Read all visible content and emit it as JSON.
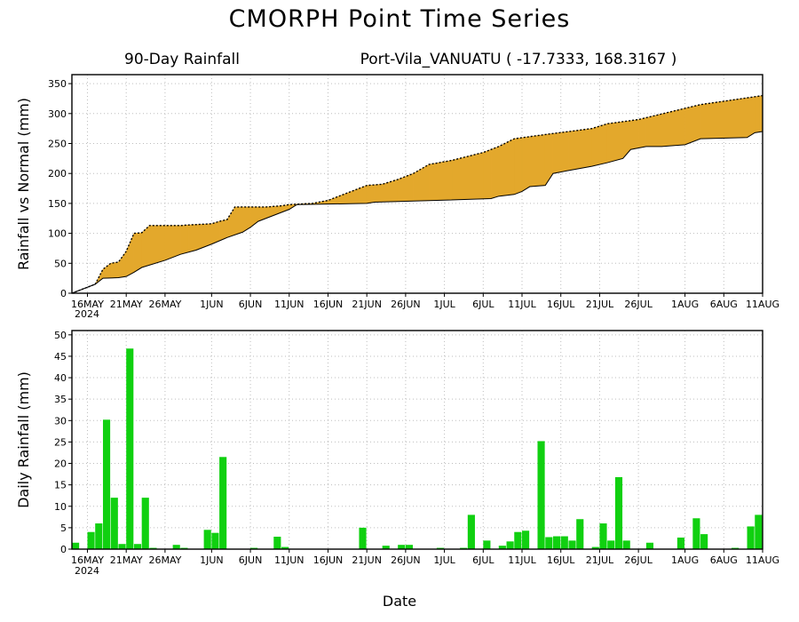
{
  "title": "CMORPH Point Time Series",
  "subtitle_left": "90-Day Rainfall",
  "subtitle_right": "Port-Vila_VANUATU ( -17.7333, 168.3167 )",
  "colors": {
    "deficit": "#1f3cff",
    "surplus": "#e3a82c",
    "daily_bar": "#10d010",
    "grid": "#bdbdbd"
  },
  "x_axis": {
    "xlabel": "Date",
    "tick_labels": [
      "16MAY",
      "21MAY",
      "26MAY",
      "1JUN",
      "6JUN",
      "11JUN",
      "16JUN",
      "21JUN",
      "26JUN",
      "1JUL",
      "6JUL",
      "11JUL",
      "16JUL",
      "21JUL",
      "26JUL",
      "1AUG",
      "6AUG",
      "11AUG"
    ],
    "year_label": "2024"
  },
  "chart_data": [
    {
      "type": "area",
      "ylabel": "Rainfall vs Normal (mm)",
      "ylim": [
        0,
        365
      ],
      "yticks": [
        0,
        50,
        100,
        150,
        200,
        250,
        300,
        350
      ],
      "grid": true,
      "x_start": "2024-05-14",
      "x_end": "2024-08-11",
      "series": [
        {
          "key": "observed",
          "points": [
            [
              "2024-05-14",
              0
            ],
            [
              "2024-05-16",
              10
            ],
            [
              "2024-05-17",
              15
            ],
            [
              "2024-05-18",
              40
            ],
            [
              "2024-05-19",
              50
            ],
            [
              "2024-05-20",
              52
            ],
            [
              "2024-05-21",
              70
            ],
            [
              "2024-05-22",
              100
            ],
            [
              "2024-05-23",
              101
            ],
            [
              "2024-05-24",
              113
            ],
            [
              "2024-05-25",
              113
            ],
            [
              "2024-05-28",
              113
            ],
            [
              "2024-05-29",
              114
            ],
            [
              "2024-06-01",
              116
            ],
            [
              "2024-06-02",
              120
            ],
            [
              "2024-06-03",
              123
            ],
            [
              "2024-06-04",
              144
            ],
            [
              "2024-06-08",
              144
            ],
            [
              "2024-06-10",
              146
            ],
            [
              "2024-06-11",
              148
            ],
            [
              "2024-06-14",
              150
            ],
            [
              "2024-06-16",
              155
            ],
            [
              "2024-06-18",
              165
            ],
            [
              "2024-06-20",
              175
            ],
            [
              "2024-06-21",
              180
            ],
            [
              "2024-06-23",
              182
            ],
            [
              "2024-06-25",
              190
            ],
            [
              "2024-06-27",
              200
            ],
            [
              "2024-06-29",
              215
            ],
            [
              "2024-07-02",
              222
            ],
            [
              "2024-07-06",
              235
            ],
            [
              "2024-07-08",
              245
            ],
            [
              "2024-07-10",
              258
            ],
            [
              "2024-07-14",
              265
            ],
            [
              "2024-07-20",
              275
            ],
            [
              "2024-07-22",
              283
            ],
            [
              "2024-07-26",
              290
            ],
            [
              "2024-08-03",
              315
            ],
            [
              "2024-08-11",
              330
            ]
          ]
        },
        {
          "key": "normal",
          "points": [
            [
              "2024-05-14",
              0
            ],
            [
              "2024-05-17",
              15
            ],
            [
              "2024-05-18",
              25
            ],
            [
              "2024-05-20",
              26
            ],
            [
              "2024-05-21",
              28
            ],
            [
              "2024-05-22",
              35
            ],
            [
              "2024-05-23",
              43
            ],
            [
              "2024-05-26",
              55
            ],
            [
              "2024-05-28",
              65
            ],
            [
              "2024-05-30",
              72
            ],
            [
              "2024-06-01",
              82
            ],
            [
              "2024-06-03",
              93
            ],
            [
              "2024-06-05",
              102
            ],
            [
              "2024-06-06",
              110
            ],
            [
              "2024-06-07",
              120
            ],
            [
              "2024-06-09",
              130
            ],
            [
              "2024-06-11",
              140
            ],
            [
              "2024-06-12",
              148
            ],
            [
              "2024-06-21",
              150
            ],
            [
              "2024-06-22",
              152
            ],
            [
              "2024-06-30",
              155
            ],
            [
              "2024-07-07",
              158
            ],
            [
              "2024-07-08",
              162
            ],
            [
              "2024-07-10",
              165
            ],
            [
              "2024-07-11",
              170
            ],
            [
              "2024-07-12",
              178
            ],
            [
              "2024-07-14",
              180
            ],
            [
              "2024-07-15",
              200
            ],
            [
              "2024-07-17",
              205
            ],
            [
              "2024-07-20",
              212
            ],
            [
              "2024-07-22",
              218
            ],
            [
              "2024-07-24",
              225
            ],
            [
              "2024-07-25",
              240
            ],
            [
              "2024-07-27",
              245
            ],
            [
              "2024-07-29",
              245
            ],
            [
              "2024-08-01",
              248
            ],
            [
              "2024-08-03",
              258
            ],
            [
              "2024-08-09",
              260
            ],
            [
              "2024-08-10",
              268
            ],
            [
              "2024-08-11",
              270
            ]
          ]
        }
      ]
    },
    {
      "type": "bar",
      "ylabel": "Daily Rainfall (mm)",
      "ylim": [
        0,
        51
      ],
      "yticks": [
        0,
        5,
        10,
        15,
        20,
        25,
        30,
        35,
        40,
        45,
        50
      ],
      "grid": true,
      "series": [
        {
          "key": "daily",
          "points": [
            [
              "2024-05-14",
              1.5
            ],
            [
              "2024-05-16",
              4
            ],
            [
              "2024-05-17",
              6
            ],
            [
              "2024-05-18",
              30.2
            ],
            [
              "2024-05-19",
              12
            ],
            [
              "2024-05-20",
              1.2
            ],
            [
              "2024-05-21",
              46.8
            ],
            [
              "2024-05-22",
              1.2
            ],
            [
              "2024-05-23",
              12
            ],
            [
              "2024-05-24",
              0.3
            ],
            [
              "2024-05-27",
              1
            ],
            [
              "2024-05-28",
              0.3
            ],
            [
              "2024-05-31",
              4.5
            ],
            [
              "2024-06-01",
              3.8
            ],
            [
              "2024-06-02",
              21.5
            ],
            [
              "2024-06-06",
              0.3
            ],
            [
              "2024-06-09",
              2.9
            ],
            [
              "2024-06-10",
              0.5
            ],
            [
              "2024-06-20",
              5
            ],
            [
              "2024-06-23",
              0.8
            ],
            [
              "2024-06-25",
              1
            ],
            [
              "2024-06-26",
              1
            ],
            [
              "2024-06-30",
              0.3
            ],
            [
              "2024-07-03",
              0.3
            ],
            [
              "2024-07-04",
              8
            ],
            [
              "2024-07-06",
              2
            ],
            [
              "2024-07-08",
              0.8
            ],
            [
              "2024-07-09",
              1.8
            ],
            [
              "2024-07-10",
              4
            ],
            [
              "2024-07-11",
              4.3
            ],
            [
              "2024-07-13",
              25.2
            ],
            [
              "2024-07-14",
              2.8
            ],
            [
              "2024-07-15",
              3
            ],
            [
              "2024-07-16",
              3
            ],
            [
              "2024-07-17",
              2
            ],
            [
              "2024-07-18",
              7
            ],
            [
              "2024-07-20",
              0.5
            ],
            [
              "2024-07-21",
              6
            ],
            [
              "2024-07-22",
              2
            ],
            [
              "2024-07-23",
              16.8
            ],
            [
              "2024-07-24",
              2
            ],
            [
              "2024-07-27",
              1.5
            ],
            [
              "2024-07-31",
              2.7
            ],
            [
              "2024-08-02",
              7.2
            ],
            [
              "2024-08-03",
              3.5
            ],
            [
              "2024-08-07",
              0.3
            ],
            [
              "2024-08-09",
              5.3
            ],
            [
              "2024-08-10",
              8
            ]
          ]
        }
      ]
    }
  ]
}
